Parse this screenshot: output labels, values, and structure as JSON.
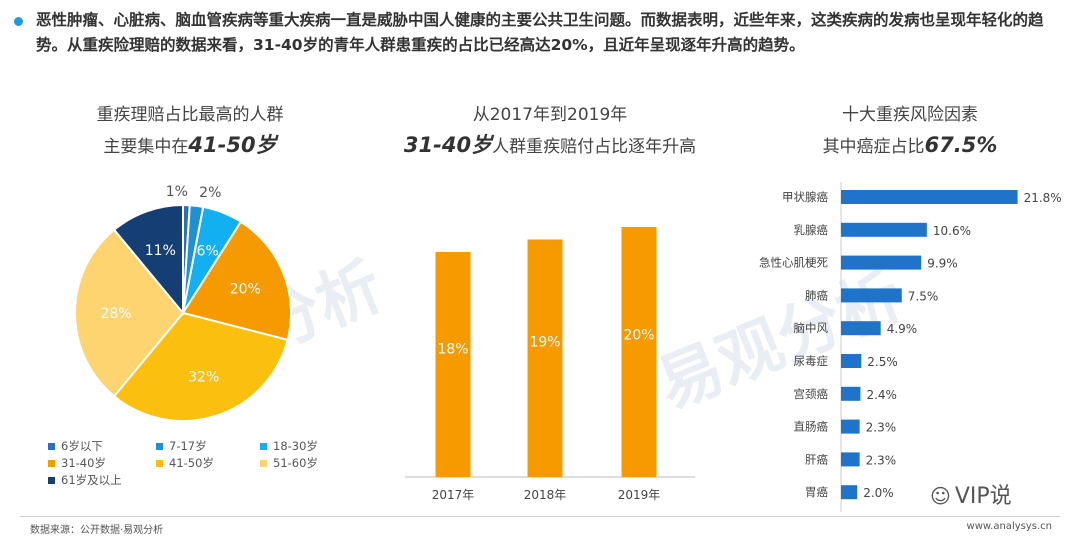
{
  "intro": {
    "text": "恶性肿瘤、心脏病、脑血管疾病等重大疾病一直是威胁中国人健康的主要公共卫生问题。而数据表明，近些年来，这类疾病的发病也呈现年轻化的趋势。从重疾险理赔的数据来看，31-40岁的青年人群患重疾的占比已经高达20%，且近年呈现逐年升高的趋势。"
  },
  "watermark": {
    "text": "易观分析",
    "brand": "nalysys"
  },
  "panels": {
    "pie": {
      "title_line1": "重疾理赔占比最高的人群",
      "title_line2_prefix": "主要集中在",
      "title_line2_em": "41-50岁"
    },
    "bar": {
      "title_line1": "从2017年到2019年",
      "title_line2_em": "31-40岁",
      "title_line2_suffix": "人群重疾赔付占比逐年升高"
    },
    "hbar": {
      "title_line1": "十大重疾风险因素",
      "title_line2_prefix": "其中癌症占比",
      "title_line2_em": "67.5%"
    }
  },
  "chart_data": [
    {
      "type": "pie",
      "slices": [
        {
          "label": "6岁以下",
          "value": 1,
          "text": "1%",
          "color": "#2c6fb9"
        },
        {
          "label": "7-17岁",
          "value": 2,
          "text": "2%",
          "color": "#1f8fd6"
        },
        {
          "label": "18-30岁",
          "value": 6,
          "text": "6%",
          "color": "#12b0f0"
        },
        {
          "label": "31-40岁",
          "value": 20,
          "text": "20%",
          "color": "#f59a00"
        },
        {
          "label": "41-50岁",
          "value": 32,
          "text": "32%",
          "color": "#fbbf10"
        },
        {
          "label": "51-60岁",
          "value": 28,
          "text": "28%",
          "color": "#fdd470"
        },
        {
          "label": "61岁及以上",
          "value": 11,
          "text": "11%",
          "color": "#153e74"
        }
      ]
    },
    {
      "type": "bar",
      "categories": [
        "2017年",
        "2018年",
        "2019年"
      ],
      "values": [
        18,
        19,
        20
      ],
      "labels": [
        "18%",
        "19%",
        "20%"
      ],
      "color": "#f79a00"
    },
    {
      "type": "bar",
      "orientation": "horizontal",
      "categories": [
        "甲状腺癌",
        "乳腺癌",
        "急性心肌梗死",
        "肺癌",
        "脑中风",
        "尿毒症",
        "宫颈癌",
        "直肠癌",
        "肝癌",
        "胃癌"
      ],
      "values": [
        21.8,
        10.6,
        9.9,
        7.5,
        4.9,
        2.5,
        2.4,
        2.3,
        2.3,
        2.0
      ],
      "labels": [
        "21.8%",
        "10.6%",
        "9.9%",
        "7.5%",
        "4.9%",
        "2.5%",
        "2.4%",
        "2.3%",
        "2.3%",
        "2.0%"
      ],
      "color": "#1f73c9"
    }
  ],
  "footer": {
    "source": "数据来源：公开数据·易观分析",
    "site": "www.analysys.cn",
    "vip_label": "VIP说"
  }
}
